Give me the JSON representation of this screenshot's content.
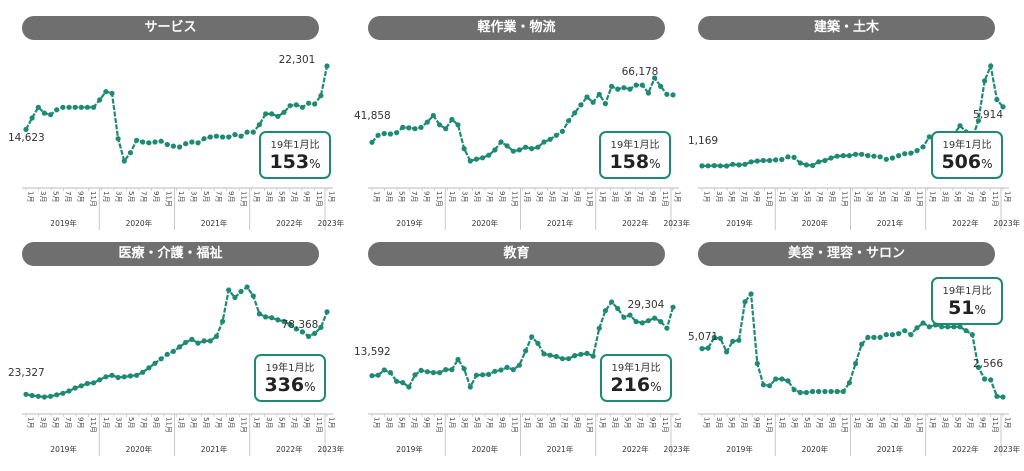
{
  "colors": {
    "line": "#1f8a73",
    "axis": "#bbbbbb",
    "pill": "#6f6f6f"
  },
  "month_ticks": [
    "1月",
    "3月",
    "5月",
    "7月",
    "9月",
    "11月",
    "1月",
    "3月",
    "5月",
    "7月",
    "9月",
    "11月",
    "1月",
    "3月",
    "5月",
    "7月",
    "9月",
    "11月",
    "1月",
    "3月",
    "5月",
    "7月",
    "9月",
    "11月",
    "1月"
  ],
  "years": [
    "2019年",
    "2020年",
    "2021年",
    "2022年",
    "2023年"
  ],
  "ratio_label": "19年1月比",
  "percent_unit": "%",
  "chart_data": [
    {
      "type": "line",
      "title": "サービス",
      "start_label": "14,623",
      "end_label": "22,301",
      "ratio": "153",
      "values": [
        14623,
        16000,
        17300,
        16600,
        16400,
        17000,
        17300,
        17300,
        17300,
        17300,
        17300,
        17300,
        18200,
        19200,
        19000,
        13500,
        10800,
        11800,
        13300,
        13100,
        13000,
        13100,
        13200,
        12800,
        12600,
        12500,
        12900,
        13100,
        13000,
        13500,
        13700,
        13800,
        13700,
        13700,
        14000,
        13800,
        14300,
        14300,
        15200,
        16500,
        16500,
        16200,
        16700,
        17500,
        17600,
        17300,
        17800,
        17700,
        18700,
        22301
      ]
    },
    {
      "type": "line",
      "title": "軽作業・物流",
      "start_label": "41,858",
      "end_label": "66,178",
      "ratio": "158",
      "values": [
        41858,
        44500,
        45200,
        45000,
        45500,
        47500,
        47300,
        47000,
        47500,
        49500,
        52000,
        48500,
        47000,
        50500,
        48500,
        39500,
        34800,
        35500,
        36000,
        37000,
        39000,
        42000,
        40500,
        38500,
        39000,
        40000,
        39500,
        40000,
        42000,
        43000,
        44500,
        46000,
        50000,
        53000,
        56000,
        59000,
        57000,
        60000,
        56500,
        63000,
        62000,
        62500,
        62000,
        63500,
        63500,
        60500,
        66178,
        63000,
        60000,
        59800
      ]
    },
    {
      "type": "line",
      "title": "建築・土木",
      "start_label": "1,169",
      "end_label": "5,914",
      "ratio": "506",
      "values": [
        1169,
        1180,
        1190,
        1180,
        1160,
        1300,
        1250,
        1300,
        1500,
        1560,
        1600,
        1600,
        1650,
        1680,
        1900,
        1850,
        1400,
        1250,
        1200,
        1500,
        1600,
        1800,
        1950,
        2000,
        2000,
        2100,
        2100,
        2000,
        1950,
        1900,
        1700,
        1800,
        2000,
        2150,
        2200,
        2400,
        2700,
        3500,
        3200,
        3300,
        3400,
        3700,
        4400,
        3900,
        3400,
        4800,
        8000,
        9200,
        6500,
        5914
      ]
    },
    {
      "type": "line",
      "title": "医療・介護・福祉",
      "start_label": "23,327",
      "end_label": "78,368",
      "ratio": "336",
      "values": [
        23327,
        22500,
        22000,
        21500,
        22000,
        23000,
        24000,
        25500,
        27500,
        29000,
        30500,
        31000,
        33000,
        35000,
        36000,
        34500,
        35000,
        35500,
        36000,
        38000,
        41000,
        44000,
        47000,
        50000,
        52000,
        55000,
        58000,
        60000,
        57500,
        59000,
        59000,
        62000,
        72000,
        93000,
        88000,
        92000,
        95000,
        89000,
        77000,
        75000,
        74500,
        73000,
        72000,
        70000,
        67000,
        65000,
        62000,
        64000,
        68000,
        78368
      ]
    },
    {
      "type": "line",
      "title": "教育",
      "start_label": "13,592",
      "end_label": "29,304",
      "ratio": "216",
      "values": [
        13592,
        13700,
        14900,
        14300,
        12300,
        12000,
        11000,
        13800,
        14800,
        14500,
        14300,
        14300,
        15000,
        15000,
        17300,
        15200,
        11000,
        13700,
        13800,
        13900,
        14600,
        14900,
        15500,
        15000,
        16000,
        19300,
        22500,
        21000,
        18600,
        18300,
        18000,
        17500,
        17500,
        18200,
        18500,
        18700,
        18100,
        24500,
        28500,
        30500,
        29000,
        27000,
        27500,
        26000,
        25700,
        26200,
        26800,
        26000,
        24500,
        29304
      ]
    },
    {
      "type": "line",
      "title": "美容・理容・サロン",
      "start_label": "5,071",
      "end_label": "2,566",
      "ratio": "51",
      "values": [
        5071,
        5100,
        5650,
        5600,
        4900,
        5450,
        5500,
        7500,
        7900,
        4300,
        3200,
        3150,
        3500,
        3500,
        3400,
        2950,
        2800,
        2800,
        2850,
        2850,
        2850,
        2850,
        2850,
        2850,
        3300,
        4300,
        5300,
        5650,
        5650,
        5650,
        5800,
        5800,
        5850,
        6000,
        5800,
        6150,
        6400,
        6200,
        6300,
        6200,
        6200,
        6200,
        6200,
        6000,
        5800,
        4100,
        3500,
        3450,
        2600,
        2566
      ]
    }
  ]
}
